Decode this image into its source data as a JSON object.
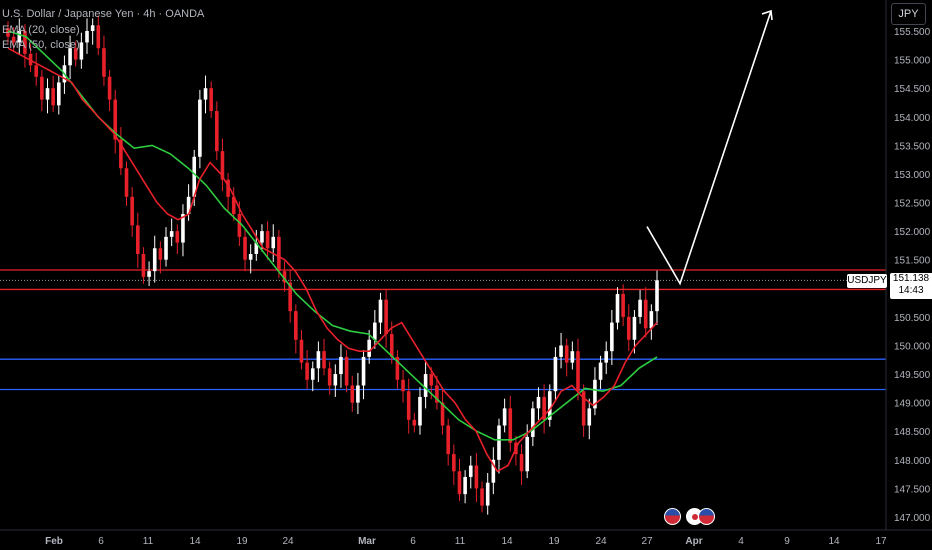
{
  "header": {
    "symbol_line": "U.S. Dollar / Japanese Yen · 4h · OANDA",
    "indicator_1": "EMA (20, close)",
    "indicator_2": "EMA (50, close)"
  },
  "currency_button": "JPY",
  "price_tag": {
    "label": "USDJPY",
    "price": "151.138",
    "countdown": "14:43"
  },
  "colors": {
    "background": "#000000",
    "up_candle": "#ffffff",
    "down_candle": "#e8202a",
    "ema20": "#e8202a",
    "ema50": "#2ecc40",
    "resistance_lines": "#e8202a",
    "support_lines": "#2962ff",
    "arrow": "#ffffff"
  },
  "chart_data": {
    "type": "candlestick",
    "title": "U.S. Dollar / Japanese Yen · 4h · OANDA",
    "y_axis": {
      "position": "right",
      "ylim": [
        146.9,
        155.65
      ],
      "ticks": [
        "155.500",
        "155.000",
        "154.500",
        "154.000",
        "153.500",
        "153.000",
        "152.500",
        "152.000",
        "151.500",
        "151.000",
        "150.500",
        "150.000",
        "149.500",
        "149.000",
        "148.500",
        "148.000",
        "147.500",
        "147.000"
      ]
    },
    "x_axis": {
      "ticks": [
        "Feb",
        "6",
        "11",
        "14",
        "19",
        "24",
        "Mar",
        "6",
        "11",
        "14",
        "19",
        "24",
        "27",
        "Apr",
        "4",
        "9",
        "14",
        "17"
      ],
      "bold_ticks": [
        "Feb",
        "Mar",
        "Apr"
      ]
    },
    "grid": false,
    "horizontal_levels": [
      {
        "price": 151.32,
        "color": "#e8202a"
      },
      {
        "price": 150.98,
        "color": "#e8202a"
      },
      {
        "price": 149.76,
        "color": "#2962ff"
      },
      {
        "price": 149.23,
        "color": "#2962ff"
      }
    ],
    "current_price_line": 151.138,
    "closes": [
      155.4,
      155.3,
      155.5,
      155.1,
      154.9,
      154.7,
      154.3,
      154.5,
      154.2,
      154.6,
      154.9,
      155.2,
      155.0,
      155.3,
      155.5,
      155.6,
      155.2,
      154.7,
      154.3,
      153.6,
      153.1,
      152.6,
      152.1,
      151.6,
      151.2,
      151.3,
      151.7,
      151.5,
      151.9,
      152.0,
      151.8,
      152.3,
      152.6,
      153.3,
      154.3,
      154.5,
      154.1,
      153.4,
      152.9,
      152.6,
      152.3,
      151.9,
      151.5,
      151.6,
      151.8,
      152.0,
      151.7,
      151.9,
      151.3,
      151.1,
      150.6,
      150.1,
      149.7,
      149.4,
      149.6,
      149.9,
      149.6,
      149.3,
      149.5,
      149.8,
      149.3,
      149.0,
      149.3,
      149.8,
      150.1,
      150.4,
      150.8,
      150.2,
      149.8,
      149.4,
      149.2,
      148.7,
      148.6,
      149.1,
      149.5,
      149.3,
      149.0,
      148.6,
      148.1,
      147.8,
      147.4,
      147.7,
      147.9,
      147.5,
      147.2,
      147.6,
      148.0,
      148.6,
      148.9,
      148.3,
      148.1,
      147.8,
      148.4,
      148.9,
      149.1,
      148.7,
      149.2,
      149.8,
      150.0,
      149.7,
      149.9,
      149.2,
      148.6,
      148.9,
      149.4,
      149.7,
      149.9,
      150.4,
      150.9,
      150.5,
      150.1,
      150.5,
      150.8,
      150.3,
      150.6,
      151.14
    ],
    "ema20": [
      155.2,
      155.1,
      155.0,
      154.9,
      154.8,
      154.7,
      154.6,
      154.3,
      154.1,
      153.9,
      153.7,
      153.4,
      153.1,
      152.8,
      152.5,
      152.3,
      152.2,
      152.3,
      152.9,
      153.2,
      153.0,
      152.7,
      152.3,
      152.0,
      151.7,
      151.6,
      151.5,
      151.3,
      151.0,
      150.6,
      150.3,
      150.1,
      149.95,
      149.9,
      149.9,
      150.1,
      150.3,
      150.4,
      150.1,
      149.8,
      149.5,
      149.2,
      149.0,
      148.7,
      148.5,
      148.1,
      147.8,
      147.9,
      148.3,
      148.5,
      148.7,
      148.9,
      149.2,
      149.3,
      149.1,
      148.95,
      149.1,
      149.3,
      149.7,
      150.0,
      150.2,
      150.4
    ],
    "ema50": [
      155.5,
      155.4,
      155.1,
      154.8,
      154.4,
      154.0,
      153.7,
      153.45,
      153.5,
      153.35,
      153.1,
      152.8,
      152.4,
      152.1,
      151.7,
      151.3,
      150.9,
      150.6,
      150.35,
      150.25,
      150.2,
      149.9,
      149.6,
      149.3,
      149.0,
      148.7,
      148.5,
      148.35,
      148.35,
      148.5,
      148.75,
      149.0,
      149.25,
      149.2,
      149.3,
      149.6,
      149.8
    ],
    "annotation": {
      "type": "arrow",
      "direction": "up",
      "from": 151.45,
      "via": 151.1,
      "to": 155.55
    }
  }
}
